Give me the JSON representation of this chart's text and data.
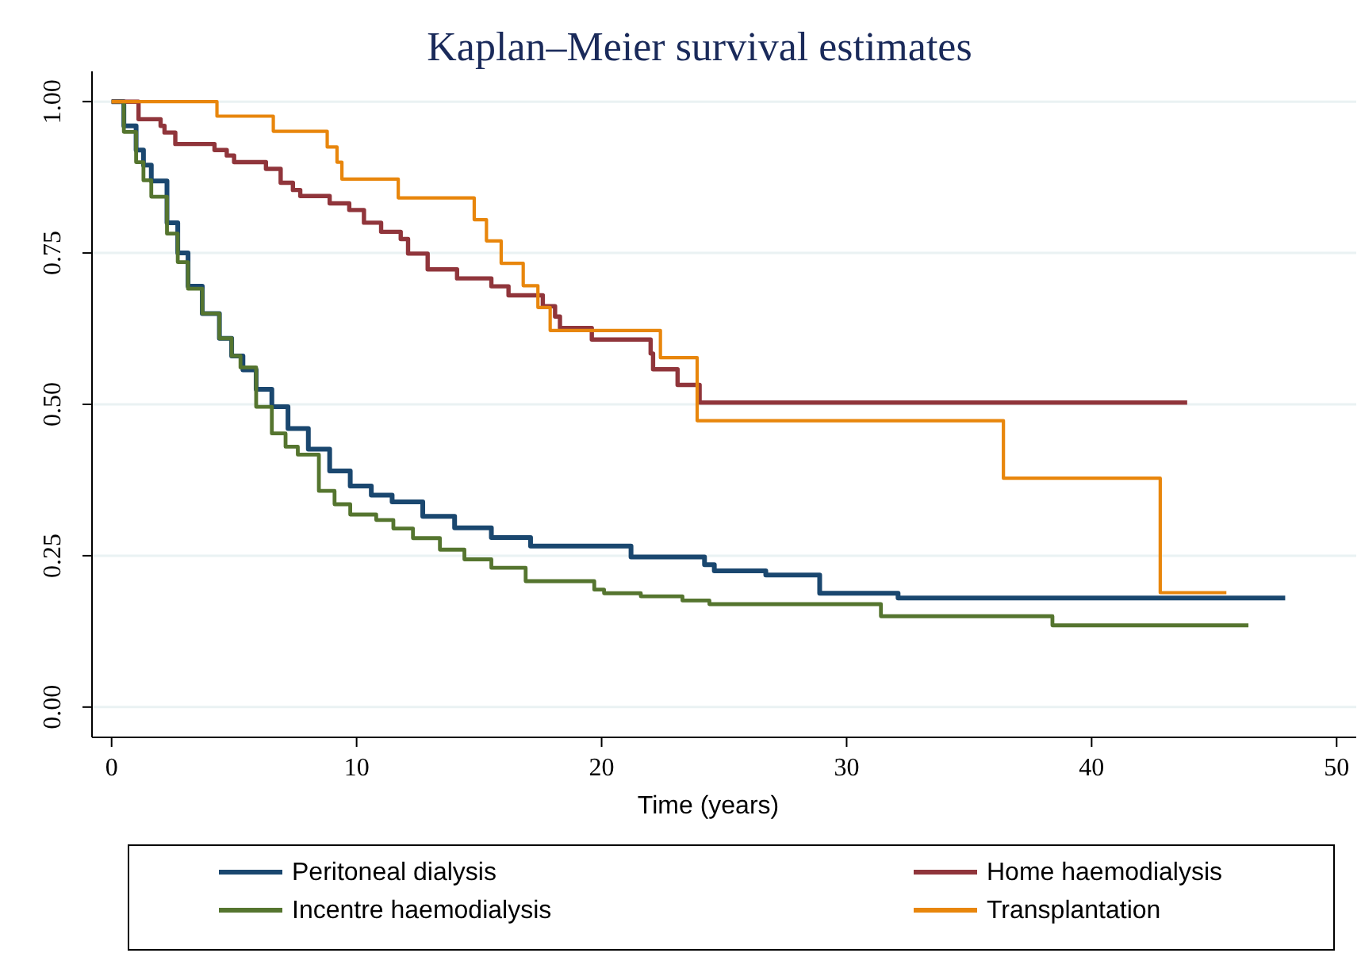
{
  "chart_data": {
    "type": "step",
    "title": "Kaplan–Meier survival estimates",
    "xlabel": "Time (years)",
    "xlim": [
      -0.8,
      50.8
    ],
    "ylim": [
      -0.05,
      1.05
    ],
    "xticks": [
      0,
      10,
      20,
      30,
      40,
      50
    ],
    "yticks": [
      {
        "value": 0,
        "label": "0.00"
      },
      {
        "value": 0.25,
        "label": "0.25"
      },
      {
        "value": 0.5,
        "label": "0.50"
      },
      {
        "value": 0.75,
        "label": "0.75"
      },
      {
        "value": 1,
        "label": "1.00"
      }
    ],
    "grid": "y",
    "legend": "bottom",
    "line_style": "solid",
    "marker": "none",
    "series": [
      {
        "name": "Peritoneal dialysis",
        "color": "#1a476f",
        "x": [
          0,
          0.13,
          0.5,
          1,
          1.3,
          1.62,
          2.26,
          2.7,
          3.12,
          3.7,
          4.4,
          4.9,
          5.36,
          5.9,
          6.54,
          7.2,
          8.03,
          8.9,
          9.74,
          10.6,
          11.45,
          12.7,
          14,
          15.5,
          17.1,
          19.7,
          21.2,
          24.2,
          24.6,
          26.7,
          28.9,
          32.1,
          47.9
        ],
        "values": [
          1,
          1,
          0.96,
          0.92,
          0.895,
          0.869,
          0.8,
          0.75,
          0.695,
          0.65,
          0.609,
          0.58,
          0.557,
          0.525,
          0.496,
          0.46,
          0.426,
          0.39,
          0.365,
          0.35,
          0.339,
          0.315,
          0.296,
          0.28,
          0.266,
          0.266,
          0.248,
          0.235,
          0.225,
          0.218,
          0.188,
          0.18,
          0.18
        ]
      },
      {
        "name": "Home haemodialysis",
        "color": "#90353b",
        "x": [
          0,
          1.1,
          2,
          2.16,
          2.6,
          4.2,
          4.7,
          5,
          6.3,
          6.9,
          7.4,
          7.7,
          8.9,
          9.7,
          10.3,
          11,
          11.8,
          12.1,
          12.9,
          14.1,
          15.5,
          16.2,
          17.6,
          18.1,
          18.3,
          19.6,
          22,
          22.1,
          23.1,
          24,
          43.9
        ],
        "values": [
          1,
          0.971,
          0.96,
          0.949,
          0.93,
          0.92,
          0.911,
          0.9,
          0.889,
          0.866,
          0.854,
          0.844,
          0.832,
          0.821,
          0.8,
          0.785,
          0.773,
          0.749,
          0.723,
          0.708,
          0.695,
          0.68,
          0.662,
          0.645,
          0.626,
          0.607,
          0.584,
          0.558,
          0.532,
          0.503,
          0.503
        ]
      },
      {
        "name": "Incentre haemodialysis",
        "color": "#55752f",
        "x": [
          0,
          0.13,
          0.5,
          1,
          1.3,
          1.62,
          2.26,
          2.7,
          3.12,
          3.7,
          4.4,
          4.9,
          5.26,
          5.9,
          6.54,
          7.1,
          7.6,
          8.46,
          9.1,
          9.74,
          10.8,
          11.5,
          12.3,
          13.4,
          14.4,
          15.5,
          16.9,
          19.7,
          20.1,
          21.6,
          23.3,
          24.4,
          30.6,
          31.4,
          38.4,
          46.4
        ],
        "values": [
          1,
          1,
          0.95,
          0.9,
          0.87,
          0.843,
          0.782,
          0.735,
          0.691,
          0.65,
          0.609,
          0.58,
          0.561,
          0.496,
          0.452,
          0.43,
          0.417,
          0.357,
          0.335,
          0.318,
          0.309,
          0.295,
          0.279,
          0.26,
          0.244,
          0.23,
          0.208,
          0.194,
          0.188,
          0.183,
          0.176,
          0.17,
          0.17,
          0.15,
          0.135,
          0.135
        ]
      },
      {
        "name": "Transplantation",
        "color": "#e8860c",
        "x": [
          0,
          4.3,
          6.6,
          8.8,
          9.2,
          9.4,
          11.7,
          14.8,
          15.3,
          15.9,
          16.8,
          17.4,
          17.9,
          22.4,
          23.9,
          36.4,
          42.8,
          45.5
        ],
        "values": [
          1,
          0.976,
          0.951,
          0.925,
          0.9,
          0.872,
          0.841,
          0.805,
          0.77,
          0.733,
          0.696,
          0.66,
          0.622,
          0.577,
          0.473,
          0.378,
          0.189,
          0.189
        ]
      }
    ]
  }
}
